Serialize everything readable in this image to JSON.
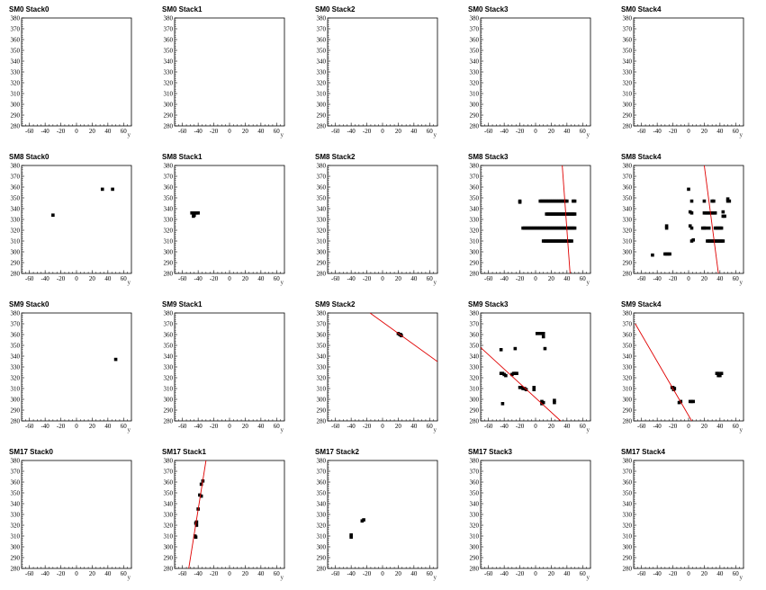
{
  "chart_data": {
    "type": "scatter",
    "xlim": [
      -70,
      70
    ],
    "ylim": [
      280,
      380
    ],
    "x_ticks": [
      -60,
      -40,
      -20,
      0,
      20,
      40,
      60
    ],
    "y_ticks": [
      280,
      290,
      300,
      310,
      320,
      330,
      340,
      350,
      360,
      370,
      380
    ],
    "xlabel": "y",
    "grid": false,
    "fit_color": "#e00000",
    "point_color": "#000000",
    "panels": [
      {
        "title": "SM0 Stack0",
        "points": [],
        "fit": null
      },
      {
        "title": "SM0 Stack1",
        "points": [],
        "fit": null
      },
      {
        "title": "SM0 Stack2",
        "points": [],
        "fit": null
      },
      {
        "title": "SM0 Stack3",
        "points": [],
        "fit": null
      },
      {
        "title": "SM0 Stack4",
        "points": [],
        "fit": null
      },
      {
        "title": "SM8 Stack0",
        "points": [
          [
            -30,
            334
          ],
          [
            33,
            358
          ],
          [
            46,
            358
          ]
        ],
        "fit": null
      },
      {
        "title": "SM8 Stack1",
        "points": [
          [
            -48,
            336
          ],
          [
            -46,
            336
          ],
          [
            -44,
            336
          ],
          [
            -42,
            336
          ],
          [
            -40,
            336
          ],
          [
            -46,
            333
          ],
          [
            -45,
            334
          ]
        ],
        "fit": null
      },
      {
        "title": "SM8 Stack2",
        "points": [],
        "fit": null
      },
      {
        "title": "SM8 Stack3",
        "points": [
          [
            -20,
            346
          ],
          [
            -20,
            347
          ],
          [
            6,
            347
          ],
          [
            8,
            347
          ],
          [
            10,
            347
          ],
          [
            12,
            347
          ],
          [
            14,
            347
          ],
          [
            16,
            347
          ],
          [
            18,
            347
          ],
          [
            20,
            347
          ],
          [
            22,
            347
          ],
          [
            24,
            347
          ],
          [
            26,
            347
          ],
          [
            28,
            347
          ],
          [
            30,
            347
          ],
          [
            32,
            347
          ],
          [
            34,
            347
          ],
          [
            36,
            347
          ],
          [
            38,
            347
          ],
          [
            40,
            347
          ],
          [
            48,
            347
          ],
          [
            50,
            347
          ],
          [
            14,
            335
          ],
          [
            16,
            335
          ],
          [
            18,
            335
          ],
          [
            20,
            335
          ],
          [
            22,
            335
          ],
          [
            24,
            335
          ],
          [
            26,
            335
          ],
          [
            28,
            335
          ],
          [
            30,
            335
          ],
          [
            32,
            335
          ],
          [
            34,
            335
          ],
          [
            36,
            335
          ],
          [
            38,
            335
          ],
          [
            40,
            335
          ],
          [
            42,
            335
          ],
          [
            44,
            335
          ],
          [
            46,
            335
          ],
          [
            48,
            335
          ],
          [
            50,
            335
          ],
          [
            -16,
            322
          ],
          [
            -14,
            322
          ],
          [
            -12,
            322
          ],
          [
            -10,
            322
          ],
          [
            -8,
            322
          ],
          [
            -6,
            322
          ],
          [
            -4,
            322
          ],
          [
            -2,
            322
          ],
          [
            0,
            322
          ],
          [
            2,
            322
          ],
          [
            4,
            322
          ],
          [
            6,
            322
          ],
          [
            8,
            322
          ],
          [
            10,
            322
          ],
          [
            12,
            322
          ],
          [
            14,
            322
          ],
          [
            16,
            322
          ],
          [
            18,
            322
          ],
          [
            20,
            322
          ],
          [
            22,
            322
          ],
          [
            24,
            322
          ],
          [
            26,
            322
          ],
          [
            28,
            322
          ],
          [
            30,
            322
          ],
          [
            32,
            322
          ],
          [
            34,
            322
          ],
          [
            36,
            322
          ],
          [
            38,
            322
          ],
          [
            40,
            322
          ],
          [
            42,
            322
          ],
          [
            44,
            322
          ],
          [
            46,
            322
          ],
          [
            48,
            322
          ],
          [
            50,
            322
          ],
          [
            10,
            310
          ],
          [
            12,
            310
          ],
          [
            14,
            310
          ],
          [
            16,
            310
          ],
          [
            18,
            310
          ],
          [
            20,
            310
          ],
          [
            22,
            310
          ],
          [
            24,
            310
          ],
          [
            26,
            310
          ],
          [
            28,
            310
          ],
          [
            30,
            310
          ],
          [
            32,
            310
          ],
          [
            34,
            310
          ],
          [
            36,
            310
          ],
          [
            38,
            310
          ],
          [
            40,
            310
          ],
          [
            42,
            310
          ],
          [
            44,
            310
          ],
          [
            46,
            310
          ]
        ],
        "fit": [
          [
            34,
            380
          ],
          [
            44,
            280
          ]
        ]
      },
      {
        "title": "SM8 Stack4",
        "points": [
          [
            0,
            358
          ],
          [
            4,
            347
          ],
          [
            2,
            337
          ],
          [
            4,
            336
          ],
          [
            2,
            324
          ],
          [
            4,
            322
          ],
          [
            6,
            311
          ],
          [
            4,
            310
          ],
          [
            -28,
            322
          ],
          [
            -28,
            324
          ],
          [
            -46,
            297
          ],
          [
            -30,
            298
          ],
          [
            -28,
            298
          ],
          [
            -26,
            298
          ],
          [
            -24,
            298
          ],
          [
            20,
            347
          ],
          [
            20,
            336
          ],
          [
            22,
            336
          ],
          [
            24,
            336
          ],
          [
            26,
            336
          ],
          [
            28,
            336
          ],
          [
            30,
            336
          ],
          [
            32,
            336
          ],
          [
            34,
            336
          ],
          [
            18,
            322
          ],
          [
            20,
            322
          ],
          [
            22,
            322
          ],
          [
            26,
            322
          ],
          [
            34,
            322
          ],
          [
            36,
            322
          ],
          [
            38,
            322
          ],
          [
            40,
            322
          ],
          [
            42,
            322
          ],
          [
            24,
            310
          ],
          [
            26,
            310
          ],
          [
            28,
            310
          ],
          [
            30,
            310
          ],
          [
            32,
            310
          ],
          [
            34,
            310
          ],
          [
            36,
            310
          ],
          [
            38,
            310
          ],
          [
            40,
            310
          ],
          [
            42,
            310
          ],
          [
            44,
            310
          ],
          [
            30,
            347
          ],
          [
            32,
            347
          ],
          [
            50,
            347
          ],
          [
            52,
            347
          ],
          [
            50,
            349
          ],
          [
            44,
            333
          ],
          [
            46,
            333
          ],
          [
            44,
            337
          ]
        ],
        "fit": [
          [
            20,
            380
          ],
          [
            38,
            280
          ]
        ]
      },
      {
        "title": "SM9 Stack0",
        "points": [
          [
            50,
            337
          ]
        ],
        "fit": null
      },
      {
        "title": "SM9 Stack1",
        "points": [],
        "fit": null
      },
      {
        "title": "SM9 Stack2",
        "points": [
          [
            20,
            361
          ],
          [
            22,
            360
          ],
          [
            24,
            359
          ],
          [
            23,
            360
          ]
        ],
        "fit": [
          [
            -16,
            380
          ],
          [
            70,
            335
          ]
        ]
      },
      {
        "title": "SM9 Stack3",
        "points": [
          [
            -44,
            346
          ],
          [
            -26,
            347
          ],
          [
            -40,
            323
          ],
          [
            -44,
            324
          ],
          [
            -42,
            324
          ],
          [
            -38,
            322
          ],
          [
            -28,
            324
          ],
          [
            -26,
            324
          ],
          [
            -24,
            324
          ],
          [
            -30,
            323
          ],
          [
            -18,
            311
          ],
          [
            -16,
            310
          ],
          [
            -14,
            310
          ],
          [
            -12,
            309
          ],
          [
            -20,
            311
          ],
          [
            -2,
            309
          ],
          [
            -2,
            311
          ],
          [
            8,
            298
          ],
          [
            10,
            297
          ],
          [
            8,
            296
          ],
          [
            24,
            297
          ],
          [
            24,
            299
          ],
          [
            2,
            361
          ],
          [
            6,
            361
          ],
          [
            10,
            358
          ],
          [
            10,
            361
          ],
          [
            12,
            347
          ],
          [
            -42,
            296
          ]
        ],
        "fit": [
          [
            -70,
            348
          ],
          [
            32,
            280
          ]
        ]
      },
      {
        "title": "SM9 Stack4",
        "points": [
          [
            -20,
            311
          ],
          [
            -18,
            310
          ],
          [
            -19,
            309
          ],
          [
            -21,
            311
          ],
          [
            -10,
            298
          ],
          [
            -12,
            297
          ],
          [
            2,
            298
          ],
          [
            4,
            298
          ],
          [
            6,
            298
          ],
          [
            36,
            324
          ],
          [
            38,
            322
          ],
          [
            40,
            322
          ],
          [
            42,
            324
          ],
          [
            38,
            324
          ]
        ],
        "fit": [
          [
            -68,
            370
          ],
          [
            4,
            280
          ]
        ]
      },
      {
        "title": "SM17 Stack0",
        "points": [],
        "fit": null
      },
      {
        "title": "SM17 Stack1",
        "points": [
          [
            -34,
            361
          ],
          [
            -36,
            358
          ],
          [
            -38,
            348
          ],
          [
            -36,
            347
          ],
          [
            -40,
            335
          ],
          [
            -42,
            323
          ],
          [
            -43,
            322
          ],
          [
            -42,
            320
          ],
          [
            -44,
            310
          ],
          [
            -43,
            309
          ]
        ],
        "fit": [
          [
            -52,
            280
          ],
          [
            -30,
            380
          ]
        ]
      },
      {
        "title": "SM17 Stack2",
        "points": [
          [
            -40,
            309
          ],
          [
            -40,
            311
          ],
          [
            -26,
            324
          ],
          [
            -24,
            325
          ]
        ],
        "fit": null
      },
      {
        "title": "SM17 Stack3",
        "points": [],
        "fit": null
      },
      {
        "title": "SM17 Stack4",
        "points": [],
        "fit": null
      }
    ]
  }
}
